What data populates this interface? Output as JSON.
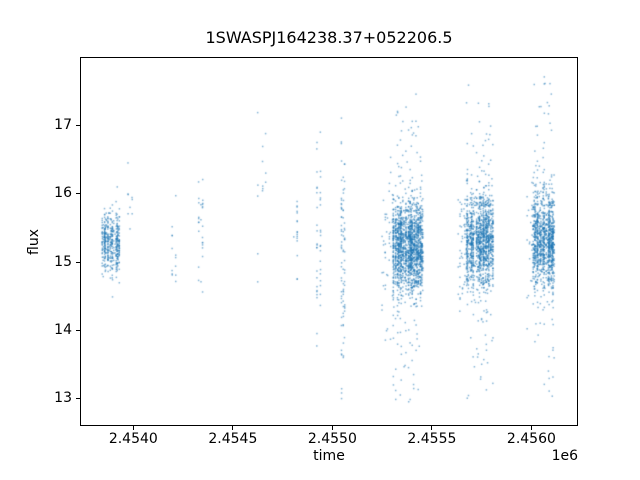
{
  "title": "1SWASPJ164238.37+052206.5",
  "axes": {
    "xlabel": "time",
    "ylabel": "flux",
    "offset_text": "1e6",
    "x_tick_labels": [
      "2.4540",
      "2.4545",
      "2.4550",
      "2.4555",
      "2.4560"
    ],
    "y_tick_labels": [
      "13",
      "14",
      "15",
      "16",
      "17"
    ]
  },
  "chart_data": {
    "type": "scatter",
    "title": "1SWASPJ164238.37+052206.5",
    "xlabel": "time",
    "ylabel": "flux",
    "x_offset_factor": "1e6",
    "xlim": [
      2453732,
      2456234
    ],
    "ylim": [
      12.6,
      18.0
    ],
    "x_ticks": [
      2454000,
      2454500,
      2455000,
      2455500,
      2456000
    ],
    "x_tick_labels": [
      "2.4540",
      "2.4545",
      "2.4550",
      "2.4555",
      "2.4560"
    ],
    "y_ticks": [
      13,
      14,
      15,
      16,
      17
    ],
    "y_tick_labels": [
      "13",
      "14",
      "15",
      "16",
      "17"
    ],
    "grid": false,
    "legend": null,
    "marker_color": "#1f77b4",
    "marker_alpha": 0.55,
    "marker_size_px": 1.5,
    "seed": 20,
    "description": "Photometric light curve: seasonal groups of nightly vertical streaks of flux measurements vs Julian-date time",
    "clusters": [
      {
        "name": "season-1-dense",
        "t_start": 2453843,
        "t_end": 2453930,
        "nights": 16,
        "pts_per_night": 30,
        "flux_mu": 15.28,
        "flux_sigma": 0.2,
        "up_tail_frac": 0.02,
        "up_tail_max": 16.2,
        "low_tail_frac": 0.012,
        "low_tail_min": 14.05
      },
      {
        "name": "season-1-edge",
        "t_start": 2453972,
        "t_end": 2453993,
        "nights": 3,
        "pts_per_night": 4,
        "flux_mu": 15.75,
        "flux_sigma": 0.33,
        "flux_min": 15.1,
        "flux_max": 16.45
      },
      {
        "name": "streak-2454200",
        "t_start": 2454195,
        "t_end": 2454212,
        "nights": 2,
        "pts_per_night": 8,
        "flux_mu": 15.35,
        "flux_sigma": 0.38,
        "flux_min": 14.7,
        "flux_max": 16.3
      },
      {
        "name": "streak-2454338",
        "t_start": 2454328,
        "t_end": 2454348,
        "nights": 3,
        "pts_per_night": 11,
        "flux_mu": 15.55,
        "flux_sigma": 0.5,
        "flux_min": 14.45,
        "flux_max": 16.9
      },
      {
        "name": "streak-2454645",
        "t_start": 2454628,
        "t_end": 2454665,
        "nights": 3,
        "pts_per_night": 6,
        "flux_mu": 16.3,
        "flux_sigma": 0.85,
        "flux_min": 13.55,
        "flux_max": 17.55
      },
      {
        "name": "streak-2454814",
        "t_start": 2454806,
        "t_end": 2454822,
        "nights": 2,
        "pts_per_night": 12,
        "flux_mu": 15.5,
        "flux_sigma": 0.45,
        "flux_min": 14.05,
        "flux_max": 16.7
      },
      {
        "name": "streak-2454930",
        "t_start": 2454922,
        "t_end": 2454938,
        "nights": 2,
        "pts_per_night": 14,
        "flux_mu": 15.2,
        "flux_sigma": 0.85,
        "flux_min": 13.5,
        "flux_max": 16.9
      },
      {
        "name": "streak-2455054",
        "t_start": 2455045,
        "t_end": 2455063,
        "nights": 3,
        "pts_per_night": 28,
        "flux_mu": 14.85,
        "flux_sigma": 1.05,
        "flux_min": 12.85,
        "flux_max": 17.75
      },
      {
        "name": "season-2-lead",
        "t_start": 2455250,
        "t_end": 2455300,
        "nights": 8,
        "pts_per_night": 6,
        "flux_mu": 15.2,
        "flux_sigma": 0.6,
        "flux_min": 13.3,
        "flux_max": 16.7
      },
      {
        "name": "season-2-dense",
        "t_start": 2455305,
        "t_end": 2455455,
        "nights": 26,
        "pts_per_night": 62,
        "flux_mu": 15.22,
        "flux_sigma": 0.32,
        "up_tail_frac": 0.05,
        "up_tail_max": 17.5,
        "low_tail_frac": 0.04,
        "low_tail_min": 12.8
      },
      {
        "name": "season-3-lead",
        "t_start": 2455632,
        "t_end": 2455662,
        "nights": 5,
        "pts_per_night": 8,
        "flux_mu": 15.3,
        "flux_sigma": 0.55,
        "flux_min": 13.0,
        "flux_max": 16.8
      },
      {
        "name": "season-3-dense",
        "t_start": 2455667,
        "t_end": 2455808,
        "nights": 26,
        "pts_per_night": 58,
        "flux_mu": 15.3,
        "flux_sigma": 0.33,
        "up_tail_frac": 0.05,
        "up_tail_max": 17.62,
        "low_tail_frac": 0.04,
        "low_tail_min": 12.95
      },
      {
        "name": "season-4-lead",
        "t_start": 2455978,
        "t_end": 2456004,
        "nights": 5,
        "pts_per_night": 7,
        "flux_mu": 15.4,
        "flux_sigma": 0.5,
        "flux_min": 13.4,
        "flux_max": 16.9
      },
      {
        "name": "season-4-dense",
        "t_start": 2456008,
        "t_end": 2456115,
        "nights": 22,
        "pts_per_night": 58,
        "flux_mu": 15.3,
        "flux_sigma": 0.33,
        "up_tail_frac": 0.055,
        "up_tail_max": 17.77,
        "low_tail_frac": 0.035,
        "low_tail_min": 12.95
      }
    ]
  }
}
